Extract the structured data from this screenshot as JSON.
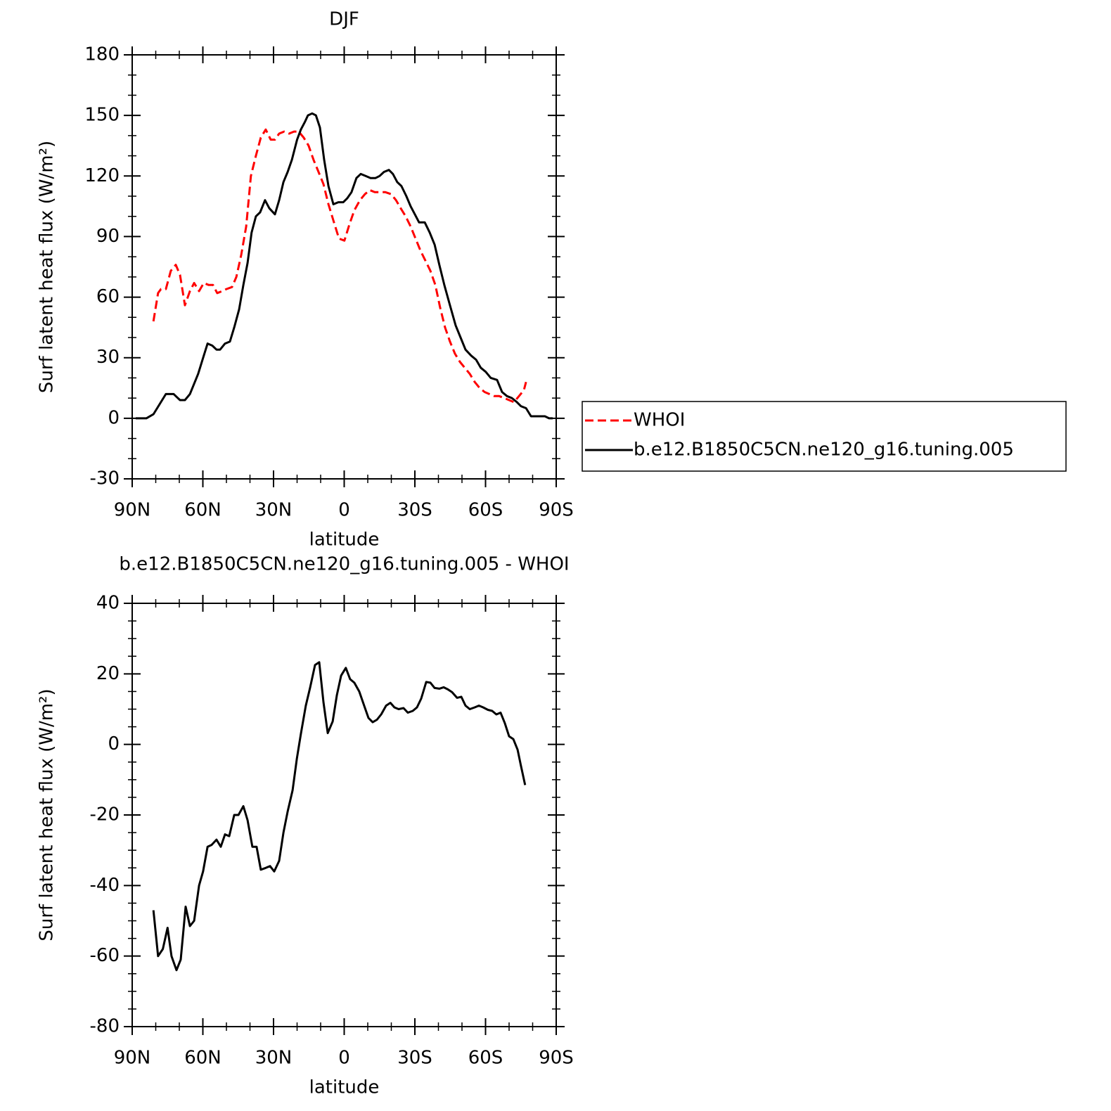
{
  "chart_data": [
    {
      "type": "line",
      "title": "DJF",
      "xlabel": "latitude",
      "ylabel": "Surf latent heat flux (W/m²)",
      "xlim": [
        90,
        -90
      ],
      "xticks": [
        {
          "value": 90,
          "label": "90N"
        },
        {
          "value": 60,
          "label": "60N"
        },
        {
          "value": 30,
          "label": "30N"
        },
        0,
        {
          "value": -30,
          "label": "30S"
        },
        {
          "value": -60,
          "label": "60S"
        },
        {
          "value": -90,
          "label": "90S"
        }
      ],
      "ylim": [
        -30,
        180
      ],
      "yticks": [
        -30,
        0,
        30,
        60,
        90,
        120,
        150,
        180
      ],
      "legend": "right",
      "series": [
        {
          "name": "WHOI",
          "color": "#ff0000",
          "linestyle": "dashed",
          "x": [
            81,
            79,
            77.8,
            75.7,
            73.6,
            71.5,
            69.7,
            67.6,
            65.5,
            63.7,
            61.6,
            59.6,
            57.5,
            55.7,
            53.9,
            51.8,
            50,
            47.6,
            45.8,
            43.7,
            41.6,
            39.6,
            37.5,
            35.4,
            33.3,
            31.2,
            29.4,
            27.6,
            25.5,
            23.4,
            21.3,
            19.3,
            17.2,
            15.1,
            13,
            10.9,
            8.8,
            6.7,
            4.6,
            2.2,
            -0.1,
            -2.2,
            -4.3,
            -6.7,
            -8.8,
            -10.9,
            -13,
            -15,
            -17.5,
            -19.9,
            -22,
            -24,
            -26.1,
            -28.2,
            -30.3,
            -32.4,
            -34.5,
            -36.6,
            -38.7,
            -40.7,
            -42.8,
            -44.9,
            -47,
            -49.1,
            -51.2,
            -53.3,
            -55.4,
            -57.5,
            -59.6,
            -61.6,
            -63.7,
            -65.8,
            -67.9,
            -70,
            -72.1,
            -74.2,
            -76.3,
            -77.2
          ],
          "values": [
            48,
            62,
            64,
            64,
            73,
            76,
            71,
            56,
            63,
            67,
            63,
            67,
            66,
            66,
            62,
            63,
            64,
            65,
            70,
            81,
            95,
            120,
            130,
            139,
            143,
            138,
            138,
            141,
            142,
            141,
            142,
            142,
            139,
            135,
            128,
            122,
            116,
            106,
            98,
            89,
            88,
            96,
            103,
            108,
            111,
            113,
            112,
            112,
            112,
            111,
            108,
            104,
            100,
            95,
            89,
            83,
            78,
            73,
            66,
            55,
            45,
            38,
            32,
            28,
            25,
            22,
            18,
            15,
            13,
            12,
            11,
            11,
            10,
            9,
            8,
            11,
            14,
            18
          ]
        },
        {
          "name": "b.e12.B1850C5CN.ne120_g16.tuning.005",
          "color": "#000000",
          "linestyle": "solid",
          "x": [
            88.5,
            84,
            81,
            75.7,
            72.4,
            69.7,
            67.6,
            65.5,
            62,
            59.6,
            58,
            56,
            54.2,
            52.7,
            50.6,
            48.5,
            46.7,
            44.6,
            42.8,
            41,
            39.3,
            37.5,
            35.7,
            33.6,
            31.8,
            29.4,
            27.6,
            25.8,
            24,
            22.2,
            20,
            18.4,
            16.6,
            15.4,
            13.6,
            12,
            10.3,
            8.5,
            6.7,
            4.6,
            2.5,
            0.4,
            -1.3,
            -3.1,
            -5.2,
            -7,
            -9.1,
            -11.2,
            -13.3,
            -15,
            -16.9,
            -19,
            -20.7,
            -22.5,
            -24.3,
            -26.4,
            -28.2,
            -30,
            -31.8,
            -34.2,
            -36.3,
            -38.4,
            -40.4,
            -42.5,
            -44.9,
            -47.3,
            -49.4,
            -51.5,
            -53.9,
            -56,
            -58,
            -60.1,
            -62.2,
            -64.9,
            -67,
            -69.1,
            -71.2,
            -73.3,
            -75,
            -77.2,
            -79.3,
            -83,
            -85.2,
            -87,
            -88.5
          ],
          "values": [
            0,
            0,
            2,
            12,
            12,
            9,
            9,
            12,
            22,
            31,
            37,
            36,
            34,
            34,
            37,
            38,
            45,
            54,
            66,
            77,
            92,
            100,
            102,
            108,
            104,
            101,
            108,
            117,
            122,
            128,
            138,
            143,
            147,
            150,
            151,
            150,
            144,
            128,
            115,
            106,
            107,
            107,
            109,
            112,
            119,
            121,
            120,
            119,
            119,
            120,
            122,
            123,
            121,
            117,
            115,
            110,
            105,
            101,
            97,
            97,
            92,
            86,
            76,
            66,
            56,
            46,
            40,
            34,
            31,
            29,
            25,
            23,
            20,
            19,
            13,
            11,
            10,
            8,
            6,
            5,
            1,
            1,
            1,
            0,
            0
          ]
        }
      ]
    },
    {
      "type": "line",
      "title": "b.e12.B1850C5CN.ne120_g16.tuning.005 - WHOI",
      "xlabel": "latitude",
      "ylabel": "Surf latent heat flux (W/m²)",
      "xlim": [
        90,
        -90
      ],
      "xticks": [
        {
          "value": 90,
          "label": "90N"
        },
        {
          "value": 60,
          "label": "60N"
        },
        {
          "value": 30,
          "label": "30N"
        },
        0,
        {
          "value": -30,
          "label": "30S"
        },
        {
          "value": -60,
          "label": "60S"
        },
        {
          "value": -90,
          "label": "90S"
        }
      ],
      "ylim": [
        -80,
        40
      ],
      "yticks": [
        -80,
        -60,
        -40,
        -20,
        0,
        20,
        40
      ],
      "series": [
        {
          "color": "#000000",
          "linestyle": "solid",
          "x": [
            81,
            79,
            77,
            75,
            73.3,
            71.2,
            69.4,
            67.3,
            65.5,
            63.7,
            61.6,
            59.9,
            58,
            56.3,
            54.2,
            52.4,
            50.6,
            48.8,
            46.7,
            44.9,
            42.8,
            41,
            39,
            37.2,
            35.4,
            33.3,
            31.5,
            29.7,
            27.6,
            25.8,
            24,
            21.9,
            20.1,
            18.4,
            16.3,
            14.5,
            12.4,
            10.6,
            8.8,
            7,
            4.9,
            3.1,
            1.3,
            -0.7,
            -2.5,
            -4.3,
            -6.4,
            -8.2,
            -10.3,
            -12.1,
            -13.9,
            -15.7,
            -17.8,
            -19.6,
            -21.3,
            -23.1,
            -25.2,
            -27,
            -29.1,
            -30.9,
            -32.7,
            -34.8,
            -36.6,
            -38.4,
            -40.4,
            -42.2,
            -44,
            -45.8,
            -47.9,
            -49.7,
            -51.5,
            -53.3,
            -55.4,
            -57.2,
            -59,
            -61,
            -62.8,
            -64.6,
            -66.4,
            -68.2,
            -70,
            -71.8,
            -73.6,
            -75,
            -76.8
          ],
          "values": [
            -47,
            -60,
            -58,
            -52,
            -60,
            -64,
            -61,
            -46,
            -51.5,
            -50,
            -40,
            -36,
            -29,
            -28.5,
            -27,
            -29,
            -25.5,
            -26,
            -20,
            -20,
            -17.5,
            -21.5,
            -29,
            -29,
            -35.5,
            -35,
            -34.5,
            -36,
            -33,
            -25,
            -19,
            -13,
            -4,
            3,
            11,
            16,
            22.5,
            23.3,
            12,
            3.2,
            6.5,
            14,
            19.5,
            21.7,
            18.5,
            17.5,
            15,
            11.5,
            7.5,
            6.3,
            7,
            8.5,
            11,
            11.8,
            10.5,
            10,
            10.3,
            9,
            9.5,
            10.5,
            13,
            17.7,
            17.5,
            16,
            15.8,
            16.2,
            15.6,
            14.8,
            13.2,
            13.5,
            11,
            10,
            10.5,
            11,
            10.5,
            9.8,
            9.5,
            8.5,
            9,
            6,
            2.3,
            1.5,
            -1.5,
            -6,
            -11.5
          ]
        }
      ]
    }
  ]
}
